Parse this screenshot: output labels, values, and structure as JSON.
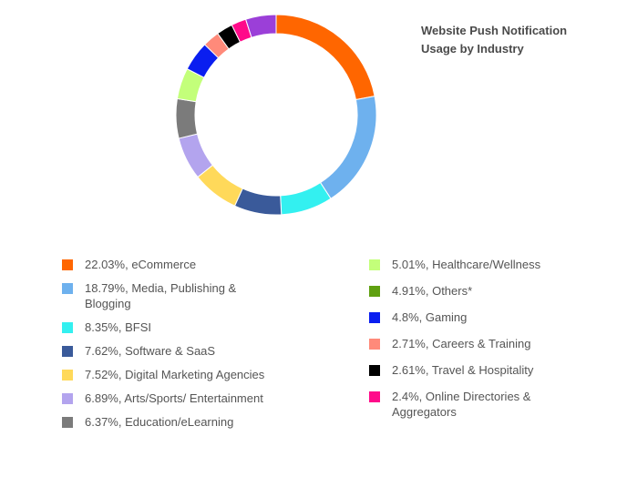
{
  "chart_data": {
    "type": "pie",
    "title": "Website Push Notification Usage by Industry",
    "legend_position": "bottom",
    "slices": [
      {
        "label": "22.03%, eCommerce",
        "value": 22.03,
        "color": "#FF6600"
      },
      {
        "label": "18.79%, Media, Publishing & Blogging",
        "value": 18.79,
        "color": "#6EB1EE"
      },
      {
        "label": "8.35%, BFSI",
        "value": 8.35,
        "color": "#33F0F0"
      },
      {
        "label": "7.62%, Software & SaaS",
        "value": 7.62,
        "color": "#3A5A9A"
      },
      {
        "label": "7.52%, Digital Marketing Agencies",
        "value": 7.52,
        "color": "#FFD95A"
      },
      {
        "label": "6.89%, Arts/Sports/ Entertainment",
        "value": 6.89,
        "color": "#B3A4EE"
      },
      {
        "label": "6.37%, Education/eLearning",
        "value": 6.37,
        "color": "#7B7B7B"
      },
      {
        "label": "5.01%, Healthcare/Wellness",
        "value": 5.01,
        "color": "#C3FF7A"
      },
      {
        "label": "4.91%, Others*",
        "value": 4.91,
        "color": "#5FA010"
      },
      {
        "label": "4.8%, Gaming",
        "value": 4.8,
        "color": "#0A1EF0"
      },
      {
        "label": "2.71%, Careers & Training",
        "value": 2.71,
        "color": "#FF8A7A"
      },
      {
        "label": "2.61%, Travel & Hospitality",
        "value": 2.61,
        "color": "#000000"
      },
      {
        "label": "2.4%, Online Directories & Aggregators",
        "value": 2.4,
        "color": "#FF0A8A"
      }
    ],
    "donut_order": [
      {
        "label": "22.03%, eCommerce",
        "value": 22.03,
        "color": "#FF6600"
      },
      {
        "label": "18.79%, Media, Publishing & Blogging",
        "value": 18.79,
        "color": "#6EB1EE"
      },
      {
        "label": "8.35%, BFSI",
        "value": 8.35,
        "color": "#33F0F0"
      },
      {
        "label": "7.62%, Software & SaaS",
        "value": 7.62,
        "color": "#3A5A9A"
      },
      {
        "label": "7.52%, Digital Marketing Agencies",
        "value": 7.52,
        "color": "#FFD95A"
      },
      {
        "label": "6.89%, Arts/Sports/ Entertainment",
        "value": 6.89,
        "color": "#B3A4EE"
      },
      {
        "label": "6.37%, Education/eLearning",
        "value": 6.37,
        "color": "#7B7B7B"
      },
      {
        "label": "5.01%, Healthcare/Wellness",
        "value": 5.01,
        "color": "#C3FF7A"
      },
      {
        "label": "4.8%, Gaming",
        "value": 4.8,
        "color": "#0A1EF0"
      },
      {
        "label": "2.71%, Careers & Training",
        "value": 2.71,
        "color": "#FF8A7A"
      },
      {
        "label": "2.61%, Travel & Hospitality",
        "value": 2.61,
        "color": "#000000"
      },
      {
        "label": "2.4%, Online Directories & Aggregators",
        "value": 2.4,
        "color": "#FF0A8A"
      },
      {
        "label": "4.91%, Others*",
        "value": 4.91,
        "color": "#9B3FD8"
      }
    ]
  }
}
